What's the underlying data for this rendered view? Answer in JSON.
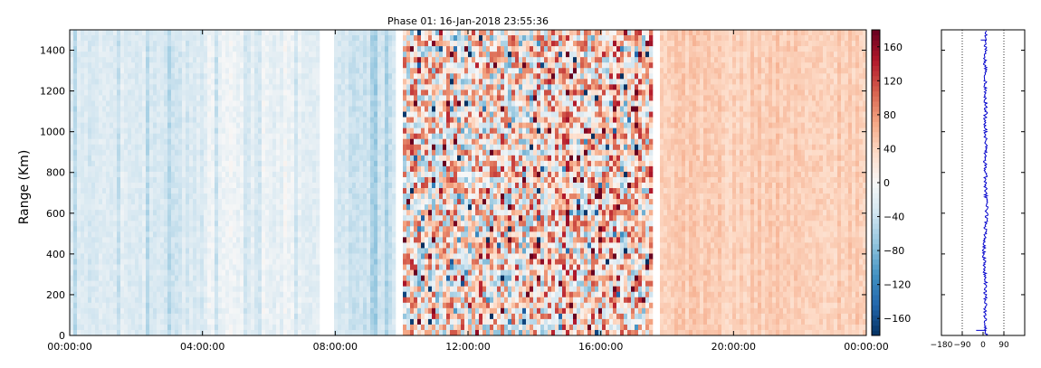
{
  "chart_data": [
    {
      "type": "heatmap",
      "title": "Phase 01: 16-Jan-2018 23:55:36",
      "xlabel": "",
      "ylabel": "Range (Km)",
      "x_range_hours": [
        0,
        24
      ],
      "ylim": [
        0,
        1500
      ],
      "x_tick_labels": [
        "00:00:00",
        "04:00:00",
        "08:00:00",
        "12:00:00",
        "16:00:00",
        "20:00:00",
        "00:00:00"
      ],
      "x_tick_hours": [
        0,
        4,
        8,
        12,
        16,
        20,
        24
      ],
      "y_ticks": [
        0,
        200,
        400,
        600,
        800,
        1000,
        1200,
        1400
      ],
      "colormap": "RdBu_r",
      "color_range": [
        -180,
        180
      ],
      "colorbar_ticks": [
        -160,
        -120,
        -80,
        -40,
        0,
        40,
        80,
        120,
        160
      ],
      "data_gaps_hours": [
        [
          7.5,
          8.0
        ],
        [
          9.85,
          10.0
        ],
        [
          17.6,
          17.75
        ]
      ],
      "hour_profile_mean_value": [
        {
          "hours": [
            0,
            2.5
          ],
          "mean": -25
        },
        {
          "hours": [
            2.5,
            4.0
          ],
          "mean": -30
        },
        {
          "hours": [
            4.0,
            7.5
          ],
          "mean": -12
        },
        {
          "hours": [
            8.0,
            10.0
          ],
          "mean": -35
        },
        {
          "hours": [
            10.0,
            14.5
          ],
          "mean": 20
        },
        {
          "hours": [
            14.5,
            17.6
          ],
          "mean": 35
        },
        {
          "hours": [
            17.75,
            24.0
          ],
          "mean": 45
        }
      ]
    },
    {
      "type": "line",
      "xlim": [
        -180,
        180
      ],
      "x_tick_labels": [
        "−180",
        "−90",
        "0",
        "90"
      ],
      "x_ticks": [
        -180,
        -90,
        0,
        90
      ],
      "ylim": [
        0,
        1500
      ],
      "grid": "vertical dotted",
      "series": [
        {
          "y": [
            0,
            50,
            100,
            150,
            200,
            250,
            300,
            350,
            400,
            450,
            500,
            550,
            600,
            650,
            700,
            750,
            800,
            850,
            900,
            950,
            1000,
            1050,
            1100,
            1150,
            1200,
            1250,
            1300,
            1350,
            1400,
            1450,
            1500
          ],
          "x": [
            12,
            10,
            8,
            12,
            10,
            12,
            8,
            6,
            4,
            4,
            8,
            12,
            16,
            14,
            12,
            10,
            12,
            8,
            10,
            12,
            10,
            8,
            12,
            10,
            8,
            10,
            12,
            8,
            10,
            12,
            10
          ]
        }
      ],
      "color": "#0000cc"
    }
  ]
}
